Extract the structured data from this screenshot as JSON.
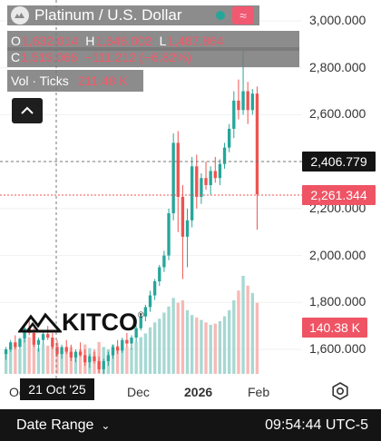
{
  "header": {
    "symbol_title": "Platinum / U.S. Dollar",
    "open_label": "O",
    "open_value": "1,632.014",
    "high_label": "H",
    "high_value": "1,646.002",
    "low_label": "L",
    "low_value": "1,487.864",
    "close_label": "C",
    "close_value": "1,519.066",
    "change_value": "−111.212 (−6.82%)",
    "volume_label": "Vol · Ticks",
    "volume_value": "211.48 K",
    "market_status_color": "#26a69a",
    "icons": [
      "platinum-logo-icon",
      "market-status-icon",
      "wave-icon",
      "chevron-up-icon"
    ]
  },
  "price_axis": {
    "labels": [
      "3,000.000",
      "2,800.000",
      "2,600.000",
      "2,400.000",
      "2,200.000",
      "2,000.000",
      "1,800.000",
      "1,600.000"
    ],
    "crosshair_price": "2,406.779",
    "last_price": "2,261.344",
    "volume_tag": "140.38 K"
  },
  "time_axis": {
    "labels": [
      "Oc",
      "Dec",
      "2026",
      "Feb"
    ],
    "crosshair_date": "21 Oct '25"
  },
  "watermark": {
    "brand": "KITCO",
    "reg": "®"
  },
  "bottom_bar": {
    "date_range_label": "Date Range",
    "time": "09:54:44 UTC-5"
  },
  "colors": {
    "up": "#26a69a",
    "down": "#ef5350",
    "up_volume": "#a6d8d2",
    "down_volume": "#f7b9b6"
  },
  "chart_data": {
    "type": "candlestick",
    "title": "Platinum / U.S. Dollar",
    "ylim": [
      1480,
      3100
    ],
    "x_ticks": [
      "Oct",
      "Dec",
      "2026",
      "Feb"
    ],
    "candles": [
      {
        "o": 1580,
        "h": 1610,
        "l": 1555,
        "c": 1600,
        "v": 18
      },
      {
        "o": 1600,
        "h": 1640,
        "l": 1590,
        "c": 1630,
        "v": 22
      },
      {
        "o": 1630,
        "h": 1660,
        "l": 1600,
        "c": 1610,
        "v": 25
      },
      {
        "o": 1610,
        "h": 1650,
        "l": 1600,
        "c": 1645,
        "v": 20
      },
      {
        "o": 1645,
        "h": 1700,
        "l": 1630,
        "c": 1690,
        "v": 28
      },
      {
        "o": 1690,
        "h": 1720,
        "l": 1660,
        "c": 1670,
        "v": 30
      },
      {
        "o": 1670,
        "h": 1690,
        "l": 1610,
        "c": 1620,
        "v": 26
      },
      {
        "o": 1620,
        "h": 1650,
        "l": 1590,
        "c": 1640,
        "v": 21
      },
      {
        "o": 1640,
        "h": 1680,
        "l": 1620,
        "c": 1665,
        "v": 24
      },
      {
        "o": 1665,
        "h": 1700,
        "l": 1640,
        "c": 1650,
        "v": 23
      },
      {
        "o": 1650,
        "h": 1670,
        "l": 1600,
        "c": 1610,
        "v": 27
      },
      {
        "o": 1610,
        "h": 1640,
        "l": 1570,
        "c": 1580,
        "v": 25
      },
      {
        "o": 1580,
        "h": 1620,
        "l": 1560,
        "c": 1610,
        "v": 19
      },
      {
        "o": 1610,
        "h": 1640,
        "l": 1580,
        "c": 1590,
        "v": 18
      },
      {
        "o": 1590,
        "h": 1620,
        "l": 1550,
        "c": 1565,
        "v": 22
      },
      {
        "o": 1565,
        "h": 1600,
        "l": 1545,
        "c": 1590,
        "v": 17
      },
      {
        "o": 1590,
        "h": 1630,
        "l": 1570,
        "c": 1575,
        "v": 20
      },
      {
        "o": 1575,
        "h": 1600,
        "l": 1530,
        "c": 1545,
        "v": 24
      },
      {
        "o": 1545,
        "h": 1580,
        "l": 1520,
        "c": 1570,
        "v": 21
      },
      {
        "o": 1570,
        "h": 1600,
        "l": 1540,
        "c": 1550,
        "v": 18
      },
      {
        "o": 1550,
        "h": 1570,
        "l": 1500,
        "c": 1515,
        "v": 26
      },
      {
        "o": 1515,
        "h": 1560,
        "l": 1495,
        "c": 1550,
        "v": 22
      },
      {
        "o": 1550,
        "h": 1590,
        "l": 1530,
        "c": 1575,
        "v": 20
      },
      {
        "o": 1575,
        "h": 1620,
        "l": 1560,
        "c": 1610,
        "v": 24
      },
      {
        "o": 1610,
        "h": 1640,
        "l": 1580,
        "c": 1595,
        "v": 23
      },
      {
        "o": 1595,
        "h": 1650,
        "l": 1585,
        "c": 1640,
        "v": 25
      },
      {
        "o": 1640,
        "h": 1670,
        "l": 1610,
        "c": 1625,
        "v": 22
      },
      {
        "o": 1625,
        "h": 1660,
        "l": 1600,
        "c": 1650,
        "v": 21
      },
      {
        "o": 1650,
        "h": 1700,
        "l": 1630,
        "c": 1690,
        "v": 26
      },
      {
        "o": 1690,
        "h": 1750,
        "l": 1680,
        "c": 1740,
        "v": 30
      },
      {
        "o": 1740,
        "h": 1790,
        "l": 1720,
        "c": 1780,
        "v": 33
      },
      {
        "o": 1780,
        "h": 1850,
        "l": 1760,
        "c": 1830,
        "v": 38
      },
      {
        "o": 1830,
        "h": 1900,
        "l": 1810,
        "c": 1890,
        "v": 42
      },
      {
        "o": 1890,
        "h": 1960,
        "l": 1870,
        "c": 1950,
        "v": 45
      },
      {
        "o": 1950,
        "h": 2020,
        "l": 1930,
        "c": 2000,
        "v": 50
      },
      {
        "o": 2000,
        "h": 2200,
        "l": 1980,
        "c": 2180,
        "v": 55
      },
      {
        "o": 2180,
        "h": 2520,
        "l": 2150,
        "c": 2480,
        "v": 62
      },
      {
        "o": 2480,
        "h": 2530,
        "l": 2100,
        "c": 2250,
        "v": 58
      },
      {
        "o": 2250,
        "h": 2300,
        "l": 1900,
        "c": 2080,
        "v": 60
      },
      {
        "o": 2080,
        "h": 2200,
        "l": 1950,
        "c": 2150,
        "v": 52
      },
      {
        "o": 2150,
        "h": 2420,
        "l": 2120,
        "c": 2380,
        "v": 48
      },
      {
        "o": 2380,
        "h": 2430,
        "l": 2200,
        "c": 2250,
        "v": 46
      },
      {
        "o": 2250,
        "h": 2350,
        "l": 2220,
        "c": 2330,
        "v": 44
      },
      {
        "o": 2330,
        "h": 2400,
        "l": 2280,
        "c": 2300,
        "v": 42
      },
      {
        "o": 2300,
        "h": 2380,
        "l": 2260,
        "c": 2360,
        "v": 40
      },
      {
        "o": 2360,
        "h": 2420,
        "l": 2310,
        "c": 2330,
        "v": 41
      },
      {
        "o": 2330,
        "h": 2410,
        "l": 2300,
        "c": 2390,
        "v": 43
      },
      {
        "o": 2390,
        "h": 2480,
        "l": 2370,
        "c": 2460,
        "v": 47
      },
      {
        "o": 2460,
        "h": 2560,
        "l": 2440,
        "c": 2540,
        "v": 52
      },
      {
        "o": 2540,
        "h": 2700,
        "l": 2500,
        "c": 2660,
        "v": 60
      },
      {
        "o": 2660,
        "h": 2750,
        "l": 2580,
        "c": 2620,
        "v": 68
      },
      {
        "o": 2620,
        "h": 2880,
        "l": 2600,
        "c": 2700,
        "v": 80
      },
      {
        "o": 2700,
        "h": 2740,
        "l": 2560,
        "c": 2620,
        "v": 72
      },
      {
        "o": 2620,
        "h": 2710,
        "l": 2600,
        "c": 2690,
        "v": 66
      },
      {
        "o": 2690,
        "h": 2720,
        "l": 2110,
        "c": 2261,
        "v": 58
      }
    ]
  }
}
